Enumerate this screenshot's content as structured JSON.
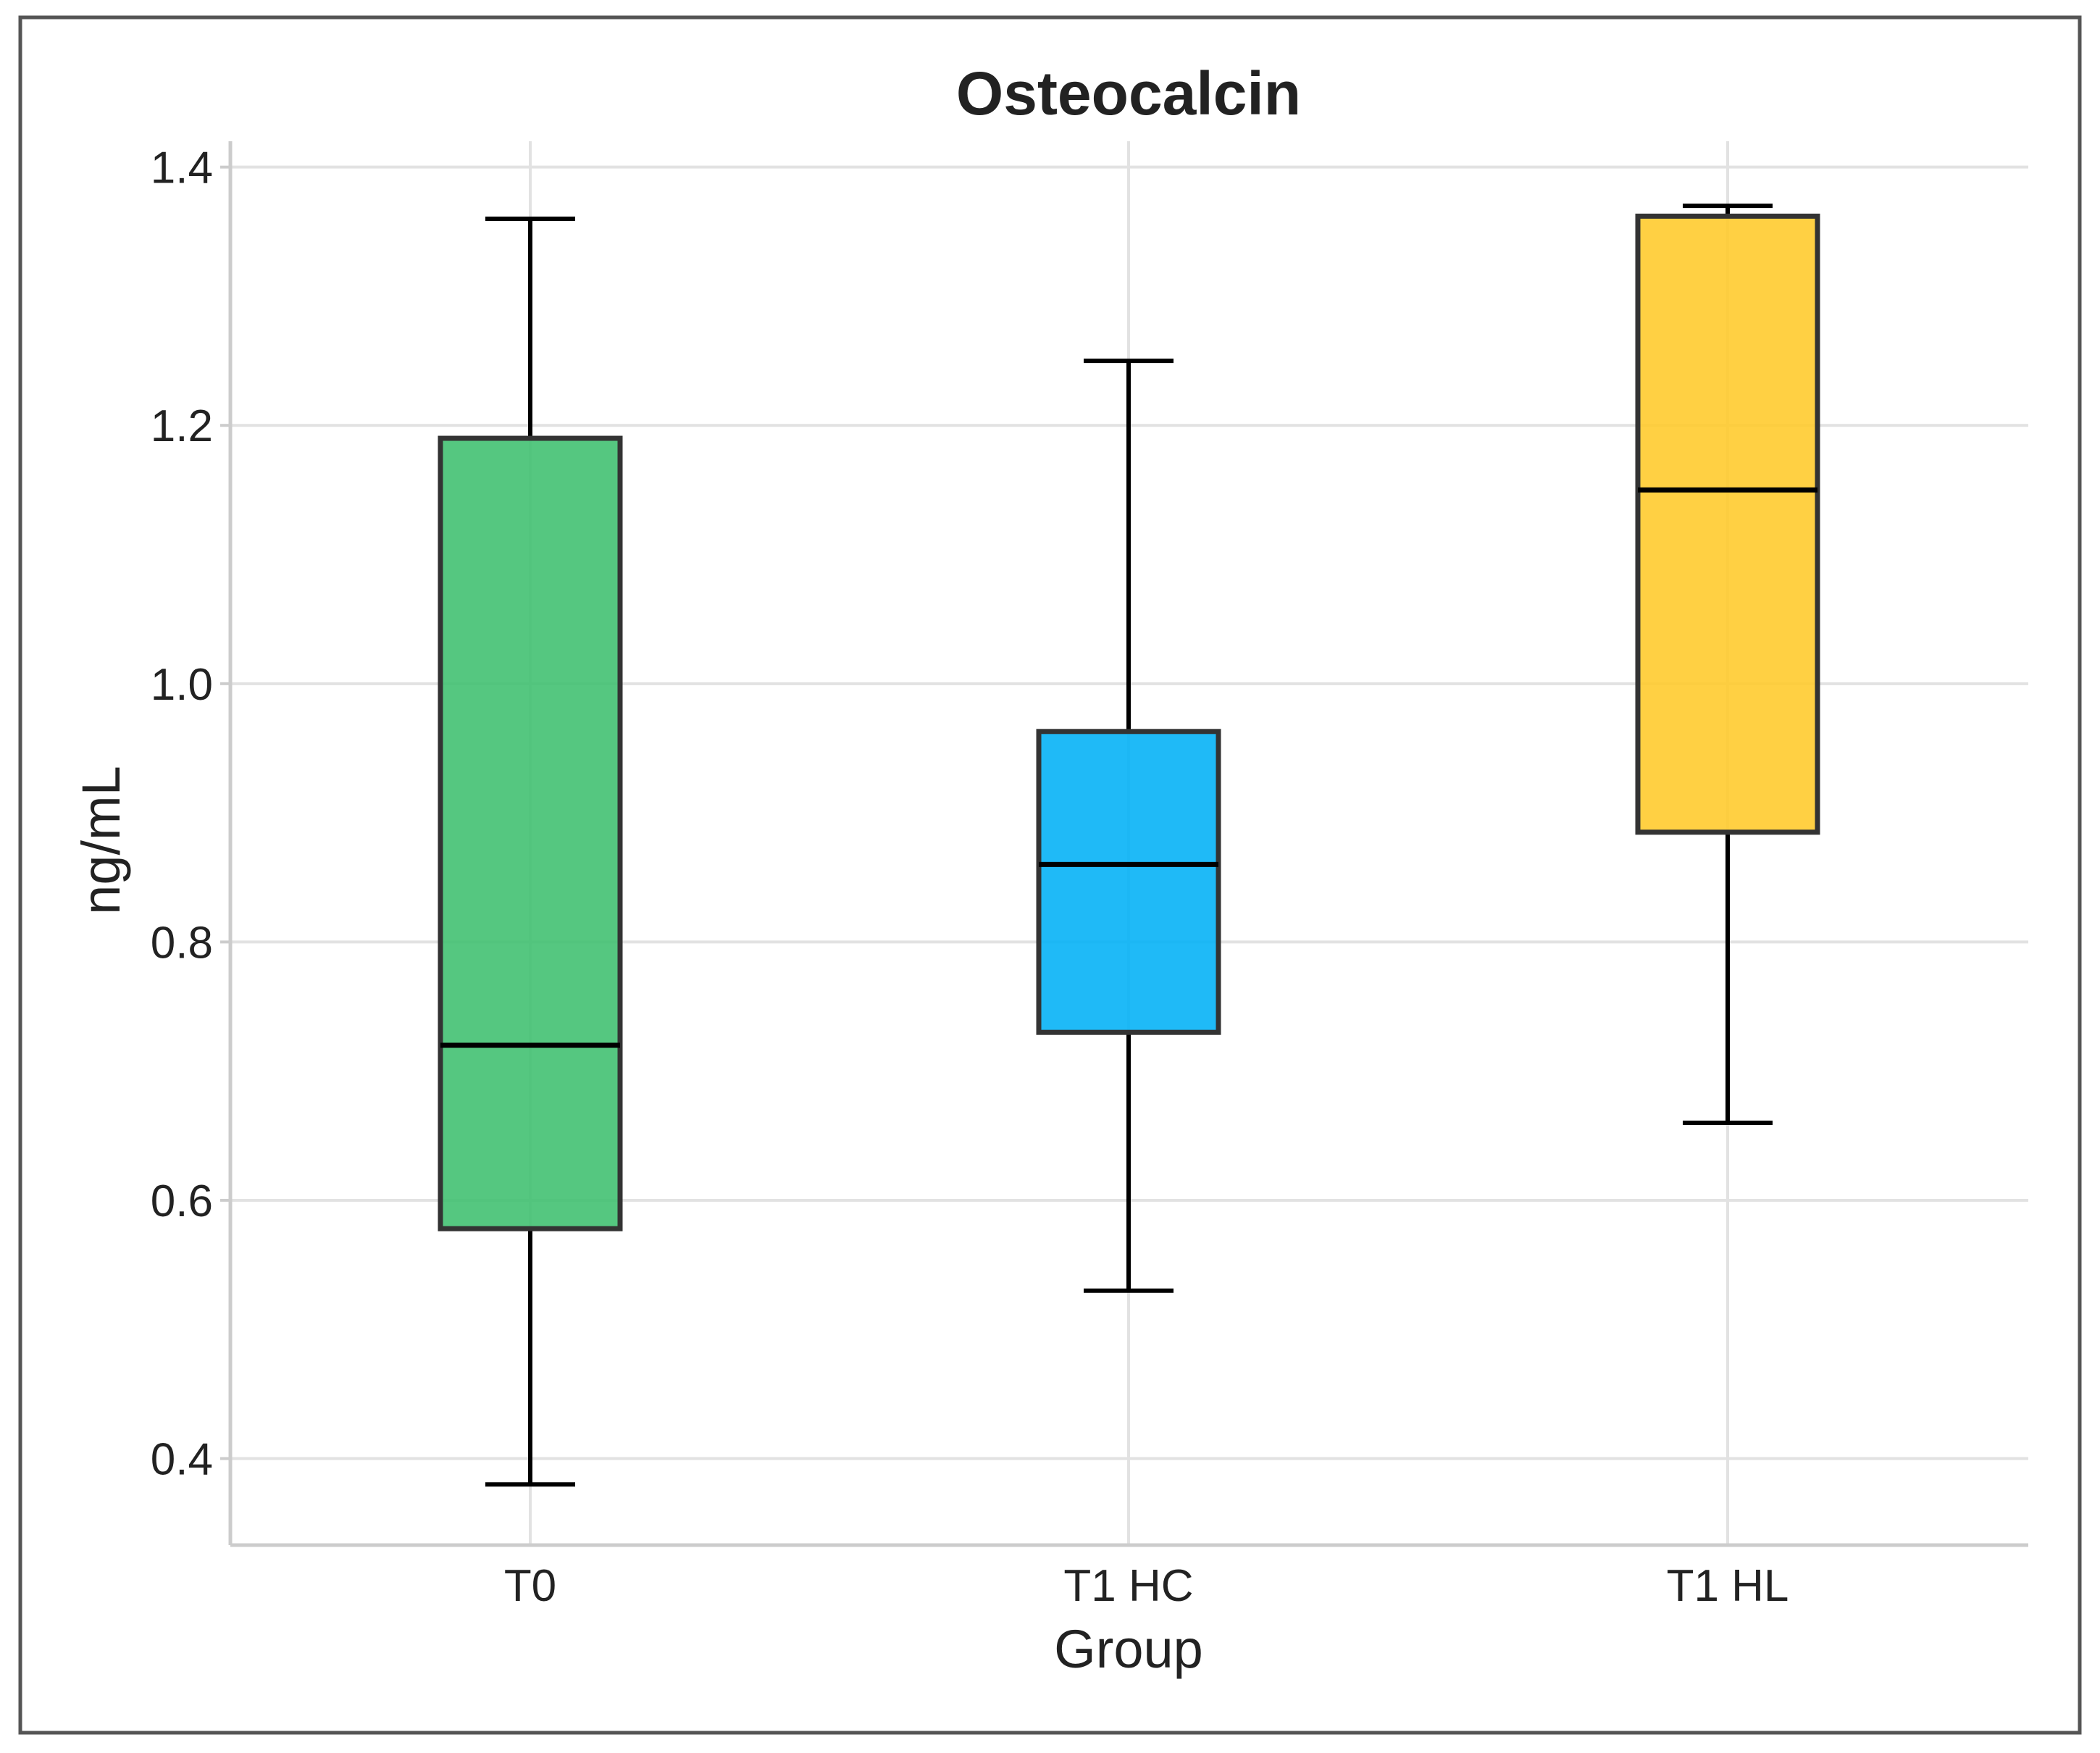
{
  "chart_data": {
    "type": "box",
    "title": "Osteocalcin",
    "xlabel": "Group",
    "ylabel": "ng/mL",
    "ylim": [
      0.333,
      1.42
    ],
    "yticks": [
      0.4,
      0.6,
      0.8,
      1.0,
      1.2,
      1.4
    ],
    "ytick_labels": [
      "0.4",
      "0.6",
      "0.8",
      "1.0",
      "1.2",
      "1.4"
    ],
    "grid": true,
    "categories": [
      "T0",
      "T1 HC",
      "T1 HL"
    ],
    "series": [
      {
        "name": "T0",
        "whisker_low": 0.38,
        "q1": 0.578,
        "median": 0.72,
        "q3": 1.19,
        "whisker_high": 1.36,
        "color": "#3dbf6e"
      },
      {
        "name": "T1 HC",
        "whisker_low": 0.53,
        "q1": 0.73,
        "median": 0.86,
        "q3": 0.963,
        "whisker_high": 1.25,
        "color": "#00b0f6"
      },
      {
        "name": "T1 HL",
        "whisker_low": 0.66,
        "q1": 0.885,
        "median": 1.15,
        "q3": 1.362,
        "whisker_high": 1.37,
        "color": "#ffc929"
      }
    ]
  }
}
